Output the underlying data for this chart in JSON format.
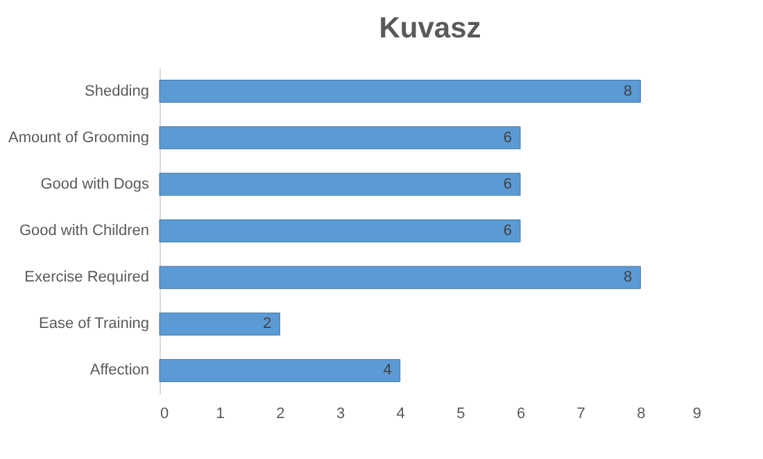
{
  "chart_data": {
    "type": "bar",
    "orientation": "horizontal",
    "title": "Kuvasz",
    "categories": [
      "Shedding",
      "Amount of Grooming",
      "Good with Dogs",
      "Good with Children",
      "Exercise Required",
      "Ease of Training",
      "Affection"
    ],
    "values": [
      8,
      6,
      6,
      6,
      8,
      2,
      4
    ],
    "color": "#5b9bd5",
    "xlim": [
      0,
      9
    ],
    "xticks": [
      0,
      1,
      2,
      3,
      4,
      5,
      6,
      7,
      8,
      9
    ],
    "data_labels": true
  }
}
